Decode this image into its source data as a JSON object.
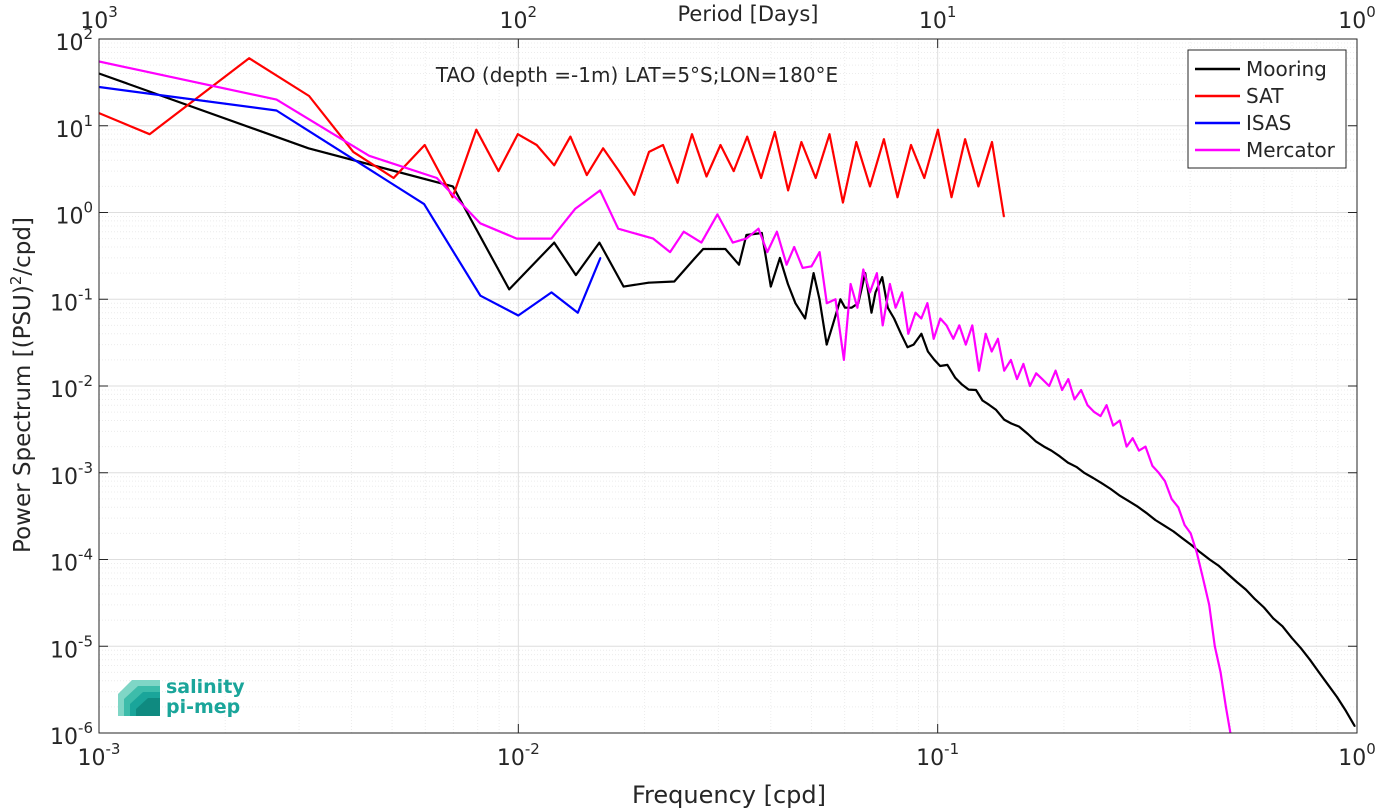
{
  "chart_data": {
    "type": "line",
    "title": "TAO (depth =-1m) LAT=5°S;LON=180°E",
    "xlabel": "Frequency [cpd]",
    "ylabel_main": "Power Spectrum [(PSU)",
    "ylabel_sup": "2",
    "ylabel_tail": "/cpd]",
    "top_axis_label": "Period [Days]",
    "x_scale": "log",
    "y_scale": "log",
    "xlim": [
      0.001,
      1
    ],
    "ylim": [
      1e-06,
      100
    ],
    "grid": true,
    "legend_position": "top-right",
    "x_ticks": [
      {
        "value": 0.001,
        "base": "10",
        "exp": "-3"
      },
      {
        "value": 0.01,
        "base": "10",
        "exp": "-2"
      },
      {
        "value": 0.1,
        "base": "10",
        "exp": "-1"
      },
      {
        "value": 1,
        "base": "10",
        "exp": "0"
      }
    ],
    "y_ticks": [
      {
        "value": 100,
        "base": "10",
        "exp": "2"
      },
      {
        "value": 10,
        "base": "10",
        "exp": "1"
      },
      {
        "value": 1,
        "base": "10",
        "exp": "0"
      },
      {
        "value": 0.1,
        "base": "10",
        "exp": "-1"
      },
      {
        "value": 0.01,
        "base": "10",
        "exp": "-2"
      },
      {
        "value": 0.001,
        "base": "10",
        "exp": "-3"
      },
      {
        "value": 0.0001,
        "base": "10",
        "exp": "-4"
      },
      {
        "value": 1e-05,
        "base": "10",
        "exp": "-5"
      },
      {
        "value": 1e-06,
        "base": "10",
        "exp": "-6"
      }
    ],
    "top_ticks": [
      {
        "value": 0.001,
        "base": "10",
        "exp": "3"
      },
      {
        "value": 0.01,
        "base": "10",
        "exp": "2"
      },
      {
        "value": 0.1,
        "base": "10",
        "exp": "1"
      },
      {
        "value": 1,
        "base": "10",
        "exp": "0"
      }
    ],
    "series": [
      {
        "name": "Mooring",
        "color": "#000000",
        "x": [
          0.001,
          0.00316,
          0.00698,
          0.00951,
          0.01218,
          0.01372,
          0.01561,
          0.01783,
          0.02045,
          0.02355,
          0.02624,
          0.02759,
          0.03117,
          0.0336,
          0.03498,
          0.03808,
          0.04,
          0.04204,
          0.04393,
          0.04578,
          0.04828,
          0.05059,
          0.05225,
          0.05438,
          0.05617,
          0.05862,
          0.06012,
          0.06235,
          0.06466,
          0.06718,
          0.06954,
          0.07109,
          0.07376,
          0.07603,
          0.07873,
          0.08176,
          0.08472,
          0.08764,
          0.09144,
          0.0948,
          0.09824,
          0.10136,
          0.1055,
          0.11003,
          0.11402,
          0.11857,
          0.12341,
          0.12794,
          0.13244,
          0.13783,
          0.14399,
          0.14979,
          0.1564,
          0.16411,
          0.17148,
          0.17925,
          0.18676,
          0.19534,
          0.20445,
          0.21485,
          0.22411,
          0.23492,
          0.24697,
          0.25855,
          0.27093,
          0.28574,
          0.29918,
          0.31431,
          0.33034,
          0.34735,
          0.3652,
          0.38363,
          0.40282,
          0.42269,
          0.44515,
          0.46746,
          0.49186,
          0.5169,
          0.54342,
          0.57085,
          0.6001,
          0.6312,
          0.66423,
          0.69886,
          0.73488,
          0.77207,
          0.81151,
          0.85267,
          0.89589,
          0.94064,
          0.98724
        ],
        "y": [
          40.0,
          5.5,
          2.0,
          0.13,
          0.45,
          0.19,
          0.45,
          0.14,
          0.155,
          0.16,
          0.29,
          0.38,
          0.38,
          0.25,
          0.55,
          0.58,
          0.14,
          0.3,
          0.15,
          0.09,
          0.06,
          0.2,
          0.1,
          0.03,
          0.05,
          0.1,
          0.08,
          0.08,
          0.09,
          0.2,
          0.07,
          0.12,
          0.18,
          0.08,
          0.06,
          0.04,
          0.028,
          0.03,
          0.04,
          0.025,
          0.02,
          0.017,
          0.0175,
          0.0125,
          0.0105,
          0.0091,
          0.009,
          0.0068,
          0.0061,
          0.0053,
          0.0041,
          0.0037,
          0.0034,
          0.0028,
          0.0023,
          0.002,
          0.0018,
          0.00155,
          0.00131,
          0.00116,
          0.00099,
          0.00087,
          0.00075,
          0.00065,
          0.00055,
          0.00047,
          0.00041,
          0.000345,
          0.000285,
          0.000245,
          0.00021,
          0.000175,
          0.000147,
          0.000121,
          0.0001,
          8.5e-05,
          6.8e-05,
          5.5e-05,
          4.5e-05,
          3.5e-05,
          2.8e-05,
          2.1e-05,
          1.7e-05,
          1.25e-05,
          9.5e-06,
          7e-06,
          5e-06,
          3.6e-06,
          2.6e-06,
          1.8e-06,
          1.2e-06
        ]
      },
      {
        "name": "SAT",
        "color": "#ff0000",
        "x": [
          0.001,
          0.00132,
          0.00228,
          0.00317,
          0.00404,
          0.00504,
          0.00598,
          0.00697,
          0.00794,
          0.00897,
          0.00997,
          0.01106,
          0.01218,
          0.01331,
          0.01456,
          0.01593,
          0.01738,
          0.0189,
          0.02049,
          0.02213,
          0.02398,
          0.02595,
          0.0281,
          0.03035,
          0.03262,
          0.03513,
          0.03792,
          0.0409,
          0.04399,
          0.04733,
          0.05118,
          0.05522,
          0.05944,
          0.06398,
          0.06896,
          0.07445,
          0.08021,
          0.08636,
          0.09292,
          0.10015,
          0.10792,
          0.11627,
          0.12508,
          0.13476,
          0.14388
        ],
        "y": [
          14.0,
          8.0,
          60.0,
          22.0,
          5.0,
          2.5,
          6.0,
          1.5,
          9.0,
          3.0,
          8.0,
          6.0,
          3.5,
          7.5,
          2.7,
          5.5,
          3.0,
          1.6,
          5.0,
          6.0,
          2.2,
          8.0,
          2.6,
          6.0,
          3.0,
          7.5,
          2.5,
          8.5,
          1.8,
          6.5,
          2.5,
          8.0,
          1.3,
          6.5,
          2.0,
          7.0,
          1.5,
          6.0,
          2.5,
          9.0,
          1.5,
          7.0,
          2.0,
          6.5,
          0.9
        ]
      },
      {
        "name": "ISAS",
        "color": "#0000ff",
        "x": [
          0.001,
          0.00265,
          0.00448,
          0.00596,
          0.00812,
          0.01,
          0.012,
          0.01386,
          0.01569
        ],
        "y": [
          28.0,
          15.0,
          3.0,
          1.25,
          0.11,
          0.065,
          0.12,
          0.07,
          0.3
        ]
      },
      {
        "name": "Mercator",
        "color": "#ff00ff",
        "x": [
          0.001,
          0.00265,
          0.00441,
          0.00639,
          0.00811,
          0.00991,
          0.01199,
          0.01366,
          0.01567,
          0.0173,
          0.02097,
          0.02301,
          0.02479,
          0.02732,
          0.02983,
          0.03246,
          0.03497,
          0.03738,
          0.03924,
          0.04136,
          0.04362,
          0.04548,
          0.04763,
          0.05002,
          0.05229,
          0.05441,
          0.05705,
          0.05975,
          0.06198,
          0.06436,
          0.06647,
          0.06891,
          0.07162,
          0.07393,
          0.07693,
          0.07939,
          0.08227,
          0.0851,
          0.08853,
          0.09142,
          0.09454,
          0.09783,
          0.10145,
          0.10498,
          0.10894,
          0.11259,
          0.11668,
          0.12096,
          0.12547,
          0.1302,
          0.13457,
          0.13917,
          0.14411,
          0.14946,
          0.15461,
          0.16008,
          0.16593,
          0.17181,
          0.17758,
          0.18449,
          0.19114,
          0.19802,
          0.20488,
          0.21199,
          0.21976,
          0.22762,
          0.23629,
          0.24452,
          0.25288,
          0.26198,
          0.27179,
          0.28224,
          0.29183,
          0.30212,
          0.31306,
          0.32513,
          0.3366,
          0.34851,
          0.36136,
          0.37487,
          0.38807,
          0.40128,
          0.41503,
          0.42958,
          0.44426,
          0.45805,
          0.47285,
          0.48686,
          0.49893
        ],
        "y": [
          55.0,
          20.0,
          4.5,
          2.5,
          0.75,
          0.5,
          0.5,
          1.1,
          1.8,
          0.65,
          0.5,
          0.35,
          0.6,
          0.45,
          0.95,
          0.45,
          0.5,
          0.65,
          0.35,
          0.6,
          0.25,
          0.4,
          0.23,
          0.24,
          0.35,
          0.09,
          0.1,
          0.02,
          0.15,
          0.08,
          0.22,
          0.12,
          0.2,
          0.05,
          0.15,
          0.08,
          0.12,
          0.04,
          0.07,
          0.06,
          0.09,
          0.035,
          0.06,
          0.05,
          0.035,
          0.05,
          0.03,
          0.05,
          0.015,
          0.04,
          0.025,
          0.035,
          0.015,
          0.02,
          0.012,
          0.018,
          0.01,
          0.014,
          0.012,
          0.01,
          0.015,
          0.009,
          0.012,
          0.007,
          0.009,
          0.006,
          0.005,
          0.0045,
          0.006,
          0.0035,
          0.004,
          0.002,
          0.0025,
          0.0018,
          0.002,
          0.0012,
          0.001,
          0.0008,
          0.0005,
          0.0004,
          0.00025,
          0.0002,
          0.00012,
          6e-05,
          3e-05,
          1e-05,
          5e-06,
          2e-06,
          1e-06
        ]
      }
    ]
  },
  "logo": {
    "line1": "salinity",
    "line2": "pi-mep",
    "color": "#1aa59a"
  }
}
